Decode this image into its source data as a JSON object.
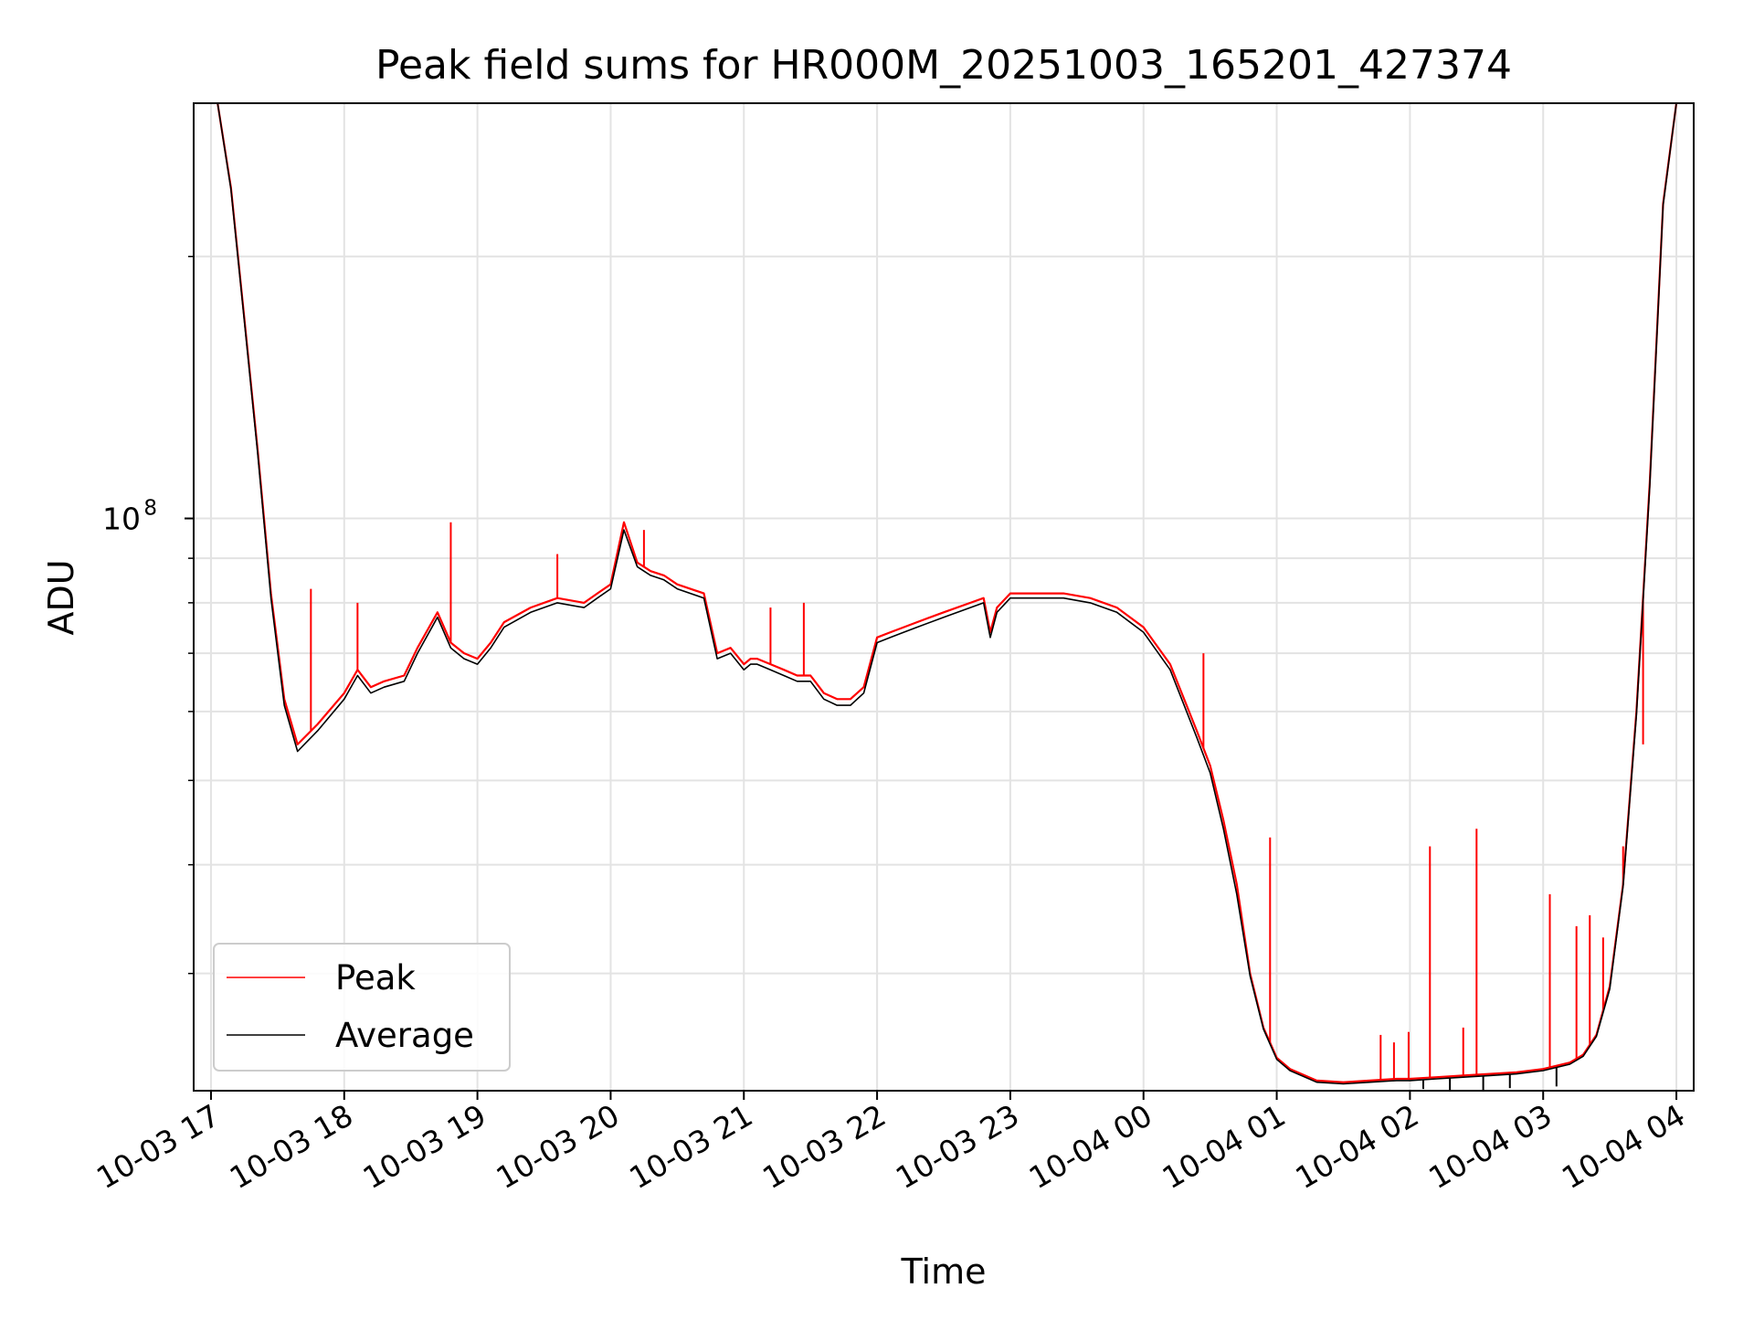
{
  "chart_data": {
    "type": "line",
    "title": "Peak field sums for HR000M_20251003_165201_427374",
    "xlabel": "Time",
    "ylabel": "ADU",
    "yscale": "log",
    "grid": true,
    "legend_position": "lower-left",
    "x_unit": "hours since 10-03 17:00",
    "xlim": [
      -0.13,
      11.13
    ],
    "ylim": [
      22000000,
      300000000
    ],
    "x_ticks": [
      {
        "value": 0,
        "label": "10-03 17"
      },
      {
        "value": 1,
        "label": "10-03 18"
      },
      {
        "value": 2,
        "label": "10-03 19"
      },
      {
        "value": 3,
        "label": "10-03 20"
      },
      {
        "value": 4,
        "label": "10-03 21"
      },
      {
        "value": 5,
        "label": "10-03 22"
      },
      {
        "value": 6,
        "label": "10-03 23"
      },
      {
        "value": 7,
        "label": "10-04 00"
      },
      {
        "value": 8,
        "label": "10-04 01"
      },
      {
        "value": 9,
        "label": "10-04 02"
      },
      {
        "value": 10,
        "label": "10-04 03"
      },
      {
        "value": 11,
        "label": "10-04 04"
      }
    ],
    "y_major_ticks": [
      {
        "value": 100000000,
        "base": "10",
        "exponent": "8"
      }
    ],
    "y_minor_ticks": [
      30000000,
      40000000,
      50000000,
      60000000,
      70000000,
      80000000,
      90000000,
      200000000
    ],
    "series": [
      {
        "name": "Peak",
        "color": "#ff0000",
        "x": [
          0.05,
          0.15,
          0.25,
          0.35,
          0.45,
          0.55,
          0.65,
          0.8,
          1.0,
          1.1,
          1.2,
          1.3,
          1.45,
          1.55,
          1.7,
          1.8,
          1.9,
          2.0,
          2.1,
          2.2,
          2.4,
          2.6,
          2.8,
          2.9,
          3.0,
          3.1,
          3.2,
          3.3,
          3.4,
          3.5,
          3.7,
          3.8,
          3.9,
          4.0,
          4.05,
          4.1,
          4.2,
          4.3,
          4.4,
          4.5,
          4.6,
          4.7,
          4.8,
          4.9,
          5.0,
          5.1,
          5.2,
          5.3,
          5.5,
          5.7,
          5.8,
          5.85,
          5.9,
          6.0,
          6.2,
          6.4,
          6.6,
          6.8,
          7.0,
          7.2,
          7.4,
          7.5,
          7.6,
          7.7,
          7.8,
          7.9,
          8.0,
          8.1,
          8.3,
          8.5,
          8.7,
          8.9,
          9.0,
          9.2,
          9.4,
          9.6,
          9.8,
          10.0,
          10.2,
          10.3,
          10.4,
          10.5,
          10.6,
          10.7,
          10.8,
          10.9,
          11.0
        ],
        "values": [
          300000000,
          240000000,
          170000000,
          120000000,
          82000000,
          62000000,
          55000000,
          58000000,
          63000000,
          67000000,
          64000000,
          65000000,
          66000000,
          71000000,
          78000000,
          72000000,
          70000000,
          69000000,
          72000000,
          76000000,
          79000000,
          81000000,
          80000000,
          82000000,
          84000000,
          99000000,
          89000000,
          87000000,
          86000000,
          84000000,
          82000000,
          70000000,
          71000000,
          68000000,
          69000000,
          69000000,
          68000000,
          67000000,
          66000000,
          66000000,
          63000000,
          62000000,
          62000000,
          64000000,
          73000000,
          74000000,
          75000000,
          76000000,
          78000000,
          80000000,
          81000000,
          74000000,
          79000000,
          82000000,
          82000000,
          82000000,
          81000000,
          79000000,
          75000000,
          68000000,
          57000000,
          52000000,
          45000000,
          38000000,
          30000000,
          26000000,
          24000000,
          23300000,
          22600000,
          22500000,
          22600000,
          22700000,
          22700000,
          22800000,
          22900000,
          23000000,
          23100000,
          23300000,
          23700000,
          24200000,
          25500000,
          29000000,
          38000000,
          60000000,
          110000000,
          230000000,
          300000000
        ],
        "spikes": [
          {
            "x": 0.75,
            "value": 83000000
          },
          {
            "x": 1.1,
            "value": 80000000
          },
          {
            "x": 1.8,
            "value": 99000000
          },
          {
            "x": 2.6,
            "value": 91000000
          },
          {
            "x": 3.25,
            "value": 97000000
          },
          {
            "x": 4.2,
            "value": 79000000
          },
          {
            "x": 4.45,
            "value": 80000000
          },
          {
            "x": 7.45,
            "value": 70000000
          },
          {
            "x": 7.95,
            "value": 43000000
          },
          {
            "x": 8.78,
            "value": 25500000
          },
          {
            "x": 8.88,
            "value": 25000000
          },
          {
            "x": 8.99,
            "value": 25700000
          },
          {
            "x": 9.15,
            "value": 42000000
          },
          {
            "x": 9.4,
            "value": 26000000
          },
          {
            "x": 9.5,
            "value": 44000000
          },
          {
            "x": 10.05,
            "value": 37000000
          },
          {
            "x": 10.05,
            "value": 26800000
          },
          {
            "x": 10.25,
            "value": 34000000
          },
          {
            "x": 10.35,
            "value": 35000000
          },
          {
            "x": 10.45,
            "value": 33000000
          },
          {
            "x": 10.6,
            "value": 42000000
          },
          {
            "x": 10.75,
            "value": 55000000
          }
        ]
      },
      {
        "name": "Average",
        "color": "#000000",
        "x": [
          0.05,
          0.15,
          0.25,
          0.35,
          0.45,
          0.55,
          0.65,
          0.8,
          1.0,
          1.1,
          1.2,
          1.3,
          1.45,
          1.55,
          1.7,
          1.8,
          1.9,
          2.0,
          2.1,
          2.2,
          2.4,
          2.6,
          2.8,
          2.9,
          3.0,
          3.1,
          3.2,
          3.3,
          3.4,
          3.5,
          3.7,
          3.8,
          3.9,
          4.0,
          4.05,
          4.1,
          4.2,
          4.3,
          4.4,
          4.5,
          4.6,
          4.7,
          4.8,
          4.9,
          5.0,
          5.1,
          5.2,
          5.3,
          5.5,
          5.7,
          5.8,
          5.85,
          5.9,
          6.0,
          6.2,
          6.4,
          6.6,
          6.8,
          7.0,
          7.2,
          7.4,
          7.5,
          7.6,
          7.7,
          7.8,
          7.9,
          8.0,
          8.1,
          8.3,
          8.5,
          8.7,
          8.9,
          9.0,
          9.2,
          9.4,
          9.6,
          9.8,
          10.0,
          10.2,
          10.3,
          10.4,
          10.5,
          10.6,
          10.7,
          10.8,
          10.9,
          11.0
        ],
        "values": [
          300000000,
          239000000,
          169000000,
          119000000,
          81000000,
          61000000,
          54000000,
          57000000,
          62000000,
          66000000,
          63000000,
          64000000,
          65000000,
          70000000,
          77000000,
          71000000,
          69000000,
          68000000,
          71000000,
          75000000,
          78000000,
          80000000,
          79000000,
          81000000,
          83000000,
          97000000,
          88000000,
          86000000,
          85000000,
          83000000,
          81000000,
          69000000,
          70000000,
          67000000,
          68000000,
          68000000,
          67000000,
          66000000,
          65000000,
          65000000,
          62000000,
          61000000,
          61000000,
          63000000,
          72000000,
          73000000,
          74000000,
          75000000,
          77000000,
          79000000,
          80000000,
          73000000,
          78000000,
          81000000,
          81000000,
          81000000,
          80000000,
          78000000,
          74000000,
          67000000,
          56000000,
          51000000,
          44000000,
          37000000,
          29800000,
          25900000,
          23900000,
          23200000,
          22500000,
          22400000,
          22500000,
          22600000,
          22600000,
          22700000,
          22800000,
          22900000,
          23000000,
          23200000,
          23600000,
          24100000,
          25400000,
          28800000,
          37800000,
          59500000,
          109000000,
          229000000,
          300000000
        ],
        "dips": [
          {
            "x": 9.1,
            "value": 22100000
          },
          {
            "x": 9.3,
            "value": 22000000
          },
          {
            "x": 9.55,
            "value": 22050000
          },
          {
            "x": 9.75,
            "value": 22150000
          },
          {
            "x": 10.1,
            "value": 22250000
          }
        ]
      }
    ]
  }
}
